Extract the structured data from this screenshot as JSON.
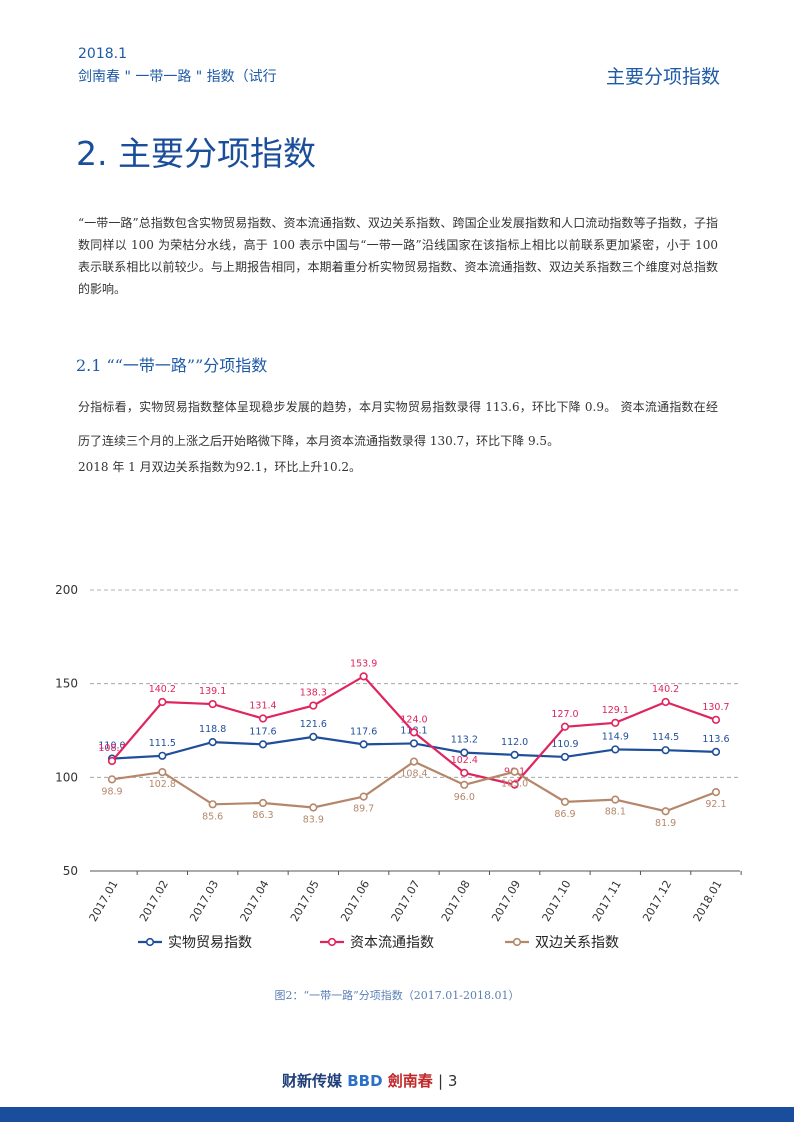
{
  "header": {
    "issue": "2018.1",
    "report": "剑南春 \" 一带一路 \" 指数（试行",
    "section": "主要分项指数"
  },
  "heading": "2. 主要分项指数",
  "intro": "“一带一路”总指数包含实物贸易指数、资本流通指数、双边关系指数、跨国企业发展指数和人口流动指数等子指数，子指数同样以 100 为荣枯分水线，高于 100 表示中国与“一带一路”沿线国家在该指标上相比以前联系更加紧密，小于 100 表示联系相比以前较少。与上期报告相同，本期着重分析实物贸易指数、资本流通指数、双边关系指数三个维度对总指数的影响。",
  "subheading": "2.1 ““一带一路””分项指数",
  "body": [
    "分指标看，实物贸易指数整体呈现稳步发展的趋势，本月实物贸易指数录得 113.6，环比下降 0.9。 资本流通指数在经历了连续三个月的上涨之后开始略微下降，本月资本流通指数录得 130.7，环比下降 9.5。",
    "2018 年 1 月双边关系指数为92.1，环比上升10.2。"
  ],
  "chart_data": {
    "type": "line",
    "caption": "图2：“一带一路”分项指数（2017.01-2018.01）",
    "categories": [
      "2017.01",
      "2017.02",
      "2017.03",
      "2017.04",
      "2017.05",
      "2017.06",
      "2017.07",
      "2017.08",
      "2017.09",
      "2017.10",
      "2017.11",
      "2017.12",
      "2018.01"
    ],
    "series": [
      {
        "name": "实物贸易指数",
        "color": "#1f4e9a",
        "values": [
          110.0,
          111.5,
          118.8,
          117.6,
          121.6,
          117.6,
          118.1,
          113.2,
          112.0,
          110.9,
          114.9,
          114.5,
          113.6
        ],
        "value_labels": [
          "110.0",
          "111.5",
          "118.8",
          "117.6",
          "121.6",
          "117.6",
          "118.1",
          "113.2",
          "112.0",
          "110.9",
          "114.9",
          "114.5",
          "113.6"
        ]
      },
      {
        "name": "资本流通指数",
        "color": "#e0245e",
        "values": [
          108.7,
          140.2,
          139.1,
          131.4,
          138.3,
          153.9,
          124.0,
          102.4,
          96.1,
          127.0,
          129.1,
          140.2,
          130.7
        ],
        "value_labels": [
          "108.7",
          "140.2",
          "139.1",
          "131.4",
          "138.3",
          "153.9",
          "124.0",
          "102.4",
          "96.1",
          "127.0",
          "129.1",
          "140.2",
          "130.7"
        ]
      },
      {
        "name": "双边关系指数",
        "color": "#b5876a",
        "values": [
          98.9,
          102.8,
          85.6,
          86.3,
          83.9,
          89.7,
          108.4,
          96.0,
          103.0,
          86.9,
          88.1,
          81.9,
          92.1
        ],
        "value_labels": [
          "98.9",
          "102.8",
          "85.6",
          "86.3",
          "83.9",
          "89.7",
          "108.4",
          "96.0",
          "103.0",
          "86.9",
          "88.1",
          "81.9",
          "92.1"
        ]
      }
    ],
    "ylim": [
      50,
      200
    ],
    "yticks": [
      50,
      100,
      150,
      200
    ],
    "grid": true
  }
}
